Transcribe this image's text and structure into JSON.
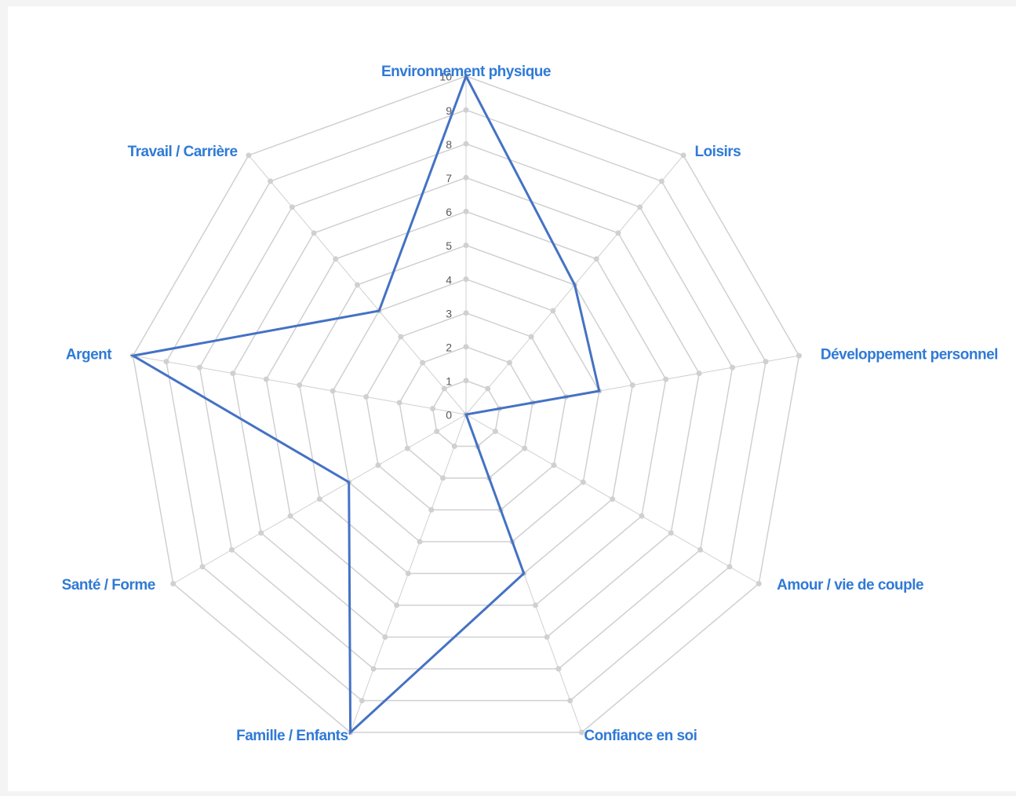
{
  "chart_data": {
    "type": "radar",
    "categories": [
      "Environnement physique",
      "Loisirs",
      "Développement personnel",
      "Amour / vie de couple",
      "Confiance en soi",
      "Famille / Enfants",
      "Santé / Forme",
      "Argent",
      "Travail / Carrière"
    ],
    "values": [
      10,
      5,
      4,
      0,
      5,
      10,
      4,
      10,
      4
    ],
    "color": "#4472c4",
    "ylim": [
      0,
      10
    ],
    "yticks": [
      0,
      1,
      2,
      3,
      4,
      5,
      6,
      7,
      8,
      9,
      10
    ],
    "grid": true,
    "grid_color": "#d0d0d0"
  }
}
